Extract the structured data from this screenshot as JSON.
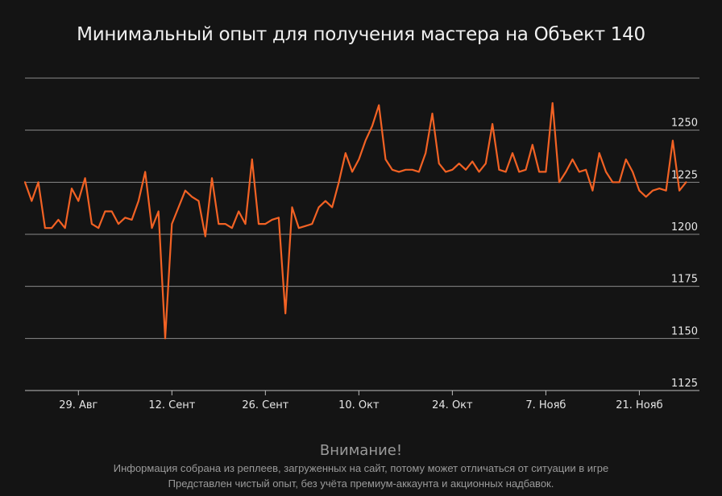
{
  "colors": {
    "background": "#141414",
    "line": "#f26224",
    "grid": "#8a8a8a",
    "text": "#e6e6e6"
  },
  "footer": {
    "title": "Внимание!",
    "line1": "Информация собрана из реплеев, загруженных на сайт, потому может отличаться от ситуации в игре",
    "line2": "Представлен чистый опыт, без учёта премиум-аккаунта и акционных надбавок."
  },
  "chart_data": {
    "type": "line",
    "title": "Минимальный опыт для получения мастера на Объект 140",
    "xlabel": "",
    "ylabel": "",
    "ylim": [
      1125,
      1275
    ],
    "yticks": [
      1125,
      1150,
      1175,
      1200,
      1225,
      1250
    ],
    "ytick_labels": [
      "1125",
      "1150",
      "1175",
      "1200",
      "1225",
      "1250"
    ],
    "xticks": [
      {
        "day": 29,
        "label": "29. Авг"
      },
      {
        "day": 43,
        "label": "12. Сент"
      },
      {
        "day": 57,
        "label": "26. Сент"
      },
      {
        "day": 71,
        "label": "10. Окт"
      },
      {
        "day": 85,
        "label": "24. Окт"
      },
      {
        "day": 99,
        "label": "7. Нояб"
      },
      {
        "day": 113,
        "label": "21. Нояб"
      }
    ],
    "xlim": [
      21,
      122
    ],
    "grid": true,
    "series": [
      {
        "values": [
          [
            21,
            1225
          ],
          [
            22,
            1216
          ],
          [
            23,
            1225
          ],
          [
            24,
            1203
          ],
          [
            25,
            1203
          ],
          [
            26,
            1207
          ],
          [
            27,
            1203
          ],
          [
            28,
            1222
          ],
          [
            29,
            1216
          ],
          [
            30,
            1227
          ],
          [
            31,
            1205
          ],
          [
            32,
            1203
          ],
          [
            33,
            1211
          ],
          [
            34,
            1211
          ],
          [
            35,
            1205
          ],
          [
            36,
            1208
          ],
          [
            37,
            1207
          ],
          [
            38,
            1216
          ],
          [
            39,
            1230
          ],
          [
            40,
            1203
          ],
          [
            41,
            1211
          ],
          [
            42,
            1150
          ],
          [
            43,
            1205
          ],
          [
            44,
            1213
          ],
          [
            45,
            1221
          ],
          [
            46,
            1218
          ],
          [
            47,
            1216
          ],
          [
            48,
            1199
          ],
          [
            49,
            1227
          ],
          [
            50,
            1205
          ],
          [
            51,
            1205
          ],
          [
            52,
            1203
          ],
          [
            53,
            1211
          ],
          [
            54,
            1205
          ],
          [
            55,
            1236
          ],
          [
            56,
            1205
          ],
          [
            57,
            1205
          ],
          [
            58,
            1207
          ],
          [
            59,
            1208
          ],
          [
            60,
            1162
          ],
          [
            61,
            1213
          ],
          [
            62,
            1203
          ],
          [
            63,
            1204
          ],
          [
            64,
            1205
          ],
          [
            65,
            1213
          ],
          [
            66,
            1216
          ],
          [
            67,
            1213
          ],
          [
            68,
            1225
          ],
          [
            69,
            1239
          ],
          [
            70,
            1230
          ],
          [
            71,
            1236
          ],
          [
            72,
            1245
          ],
          [
            73,
            1252
          ],
          [
            74,
            1262
          ],
          [
            75,
            1236
          ],
          [
            76,
            1231
          ],
          [
            77,
            1230
          ],
          [
            78,
            1231
          ],
          [
            79,
            1231
          ],
          [
            80,
            1230
          ],
          [
            81,
            1239
          ],
          [
            82,
            1258
          ],
          [
            83,
            1234
          ],
          [
            84,
            1230
          ],
          [
            85,
            1231
          ],
          [
            86,
            1234
          ],
          [
            87,
            1231
          ],
          [
            88,
            1235
          ],
          [
            89,
            1230
          ],
          [
            90,
            1234
          ],
          [
            91,
            1253
          ],
          [
            92,
            1231
          ],
          [
            93,
            1230
          ],
          [
            94,
            1239
          ],
          [
            95,
            1230
          ],
          [
            96,
            1231
          ],
          [
            97,
            1243
          ],
          [
            98,
            1230
          ],
          [
            99,
            1230
          ],
          [
            100,
            1263
          ],
          [
            101,
            1225
          ],
          [
            102,
            1230
          ],
          [
            103,
            1236
          ],
          [
            104,
            1230
          ],
          [
            105,
            1231
          ],
          [
            106,
            1221
          ],
          [
            107,
            1239
          ],
          [
            108,
            1230
          ],
          [
            109,
            1225
          ],
          [
            110,
            1225
          ],
          [
            111,
            1236
          ],
          [
            112,
            1230
          ],
          [
            113,
            1221
          ],
          [
            114,
            1218
          ],
          [
            115,
            1221
          ],
          [
            116,
            1222
          ],
          [
            117,
            1221
          ],
          [
            118,
            1245
          ],
          [
            119,
            1221
          ],
          [
            120,
            1225
          ]
        ]
      }
    ]
  }
}
